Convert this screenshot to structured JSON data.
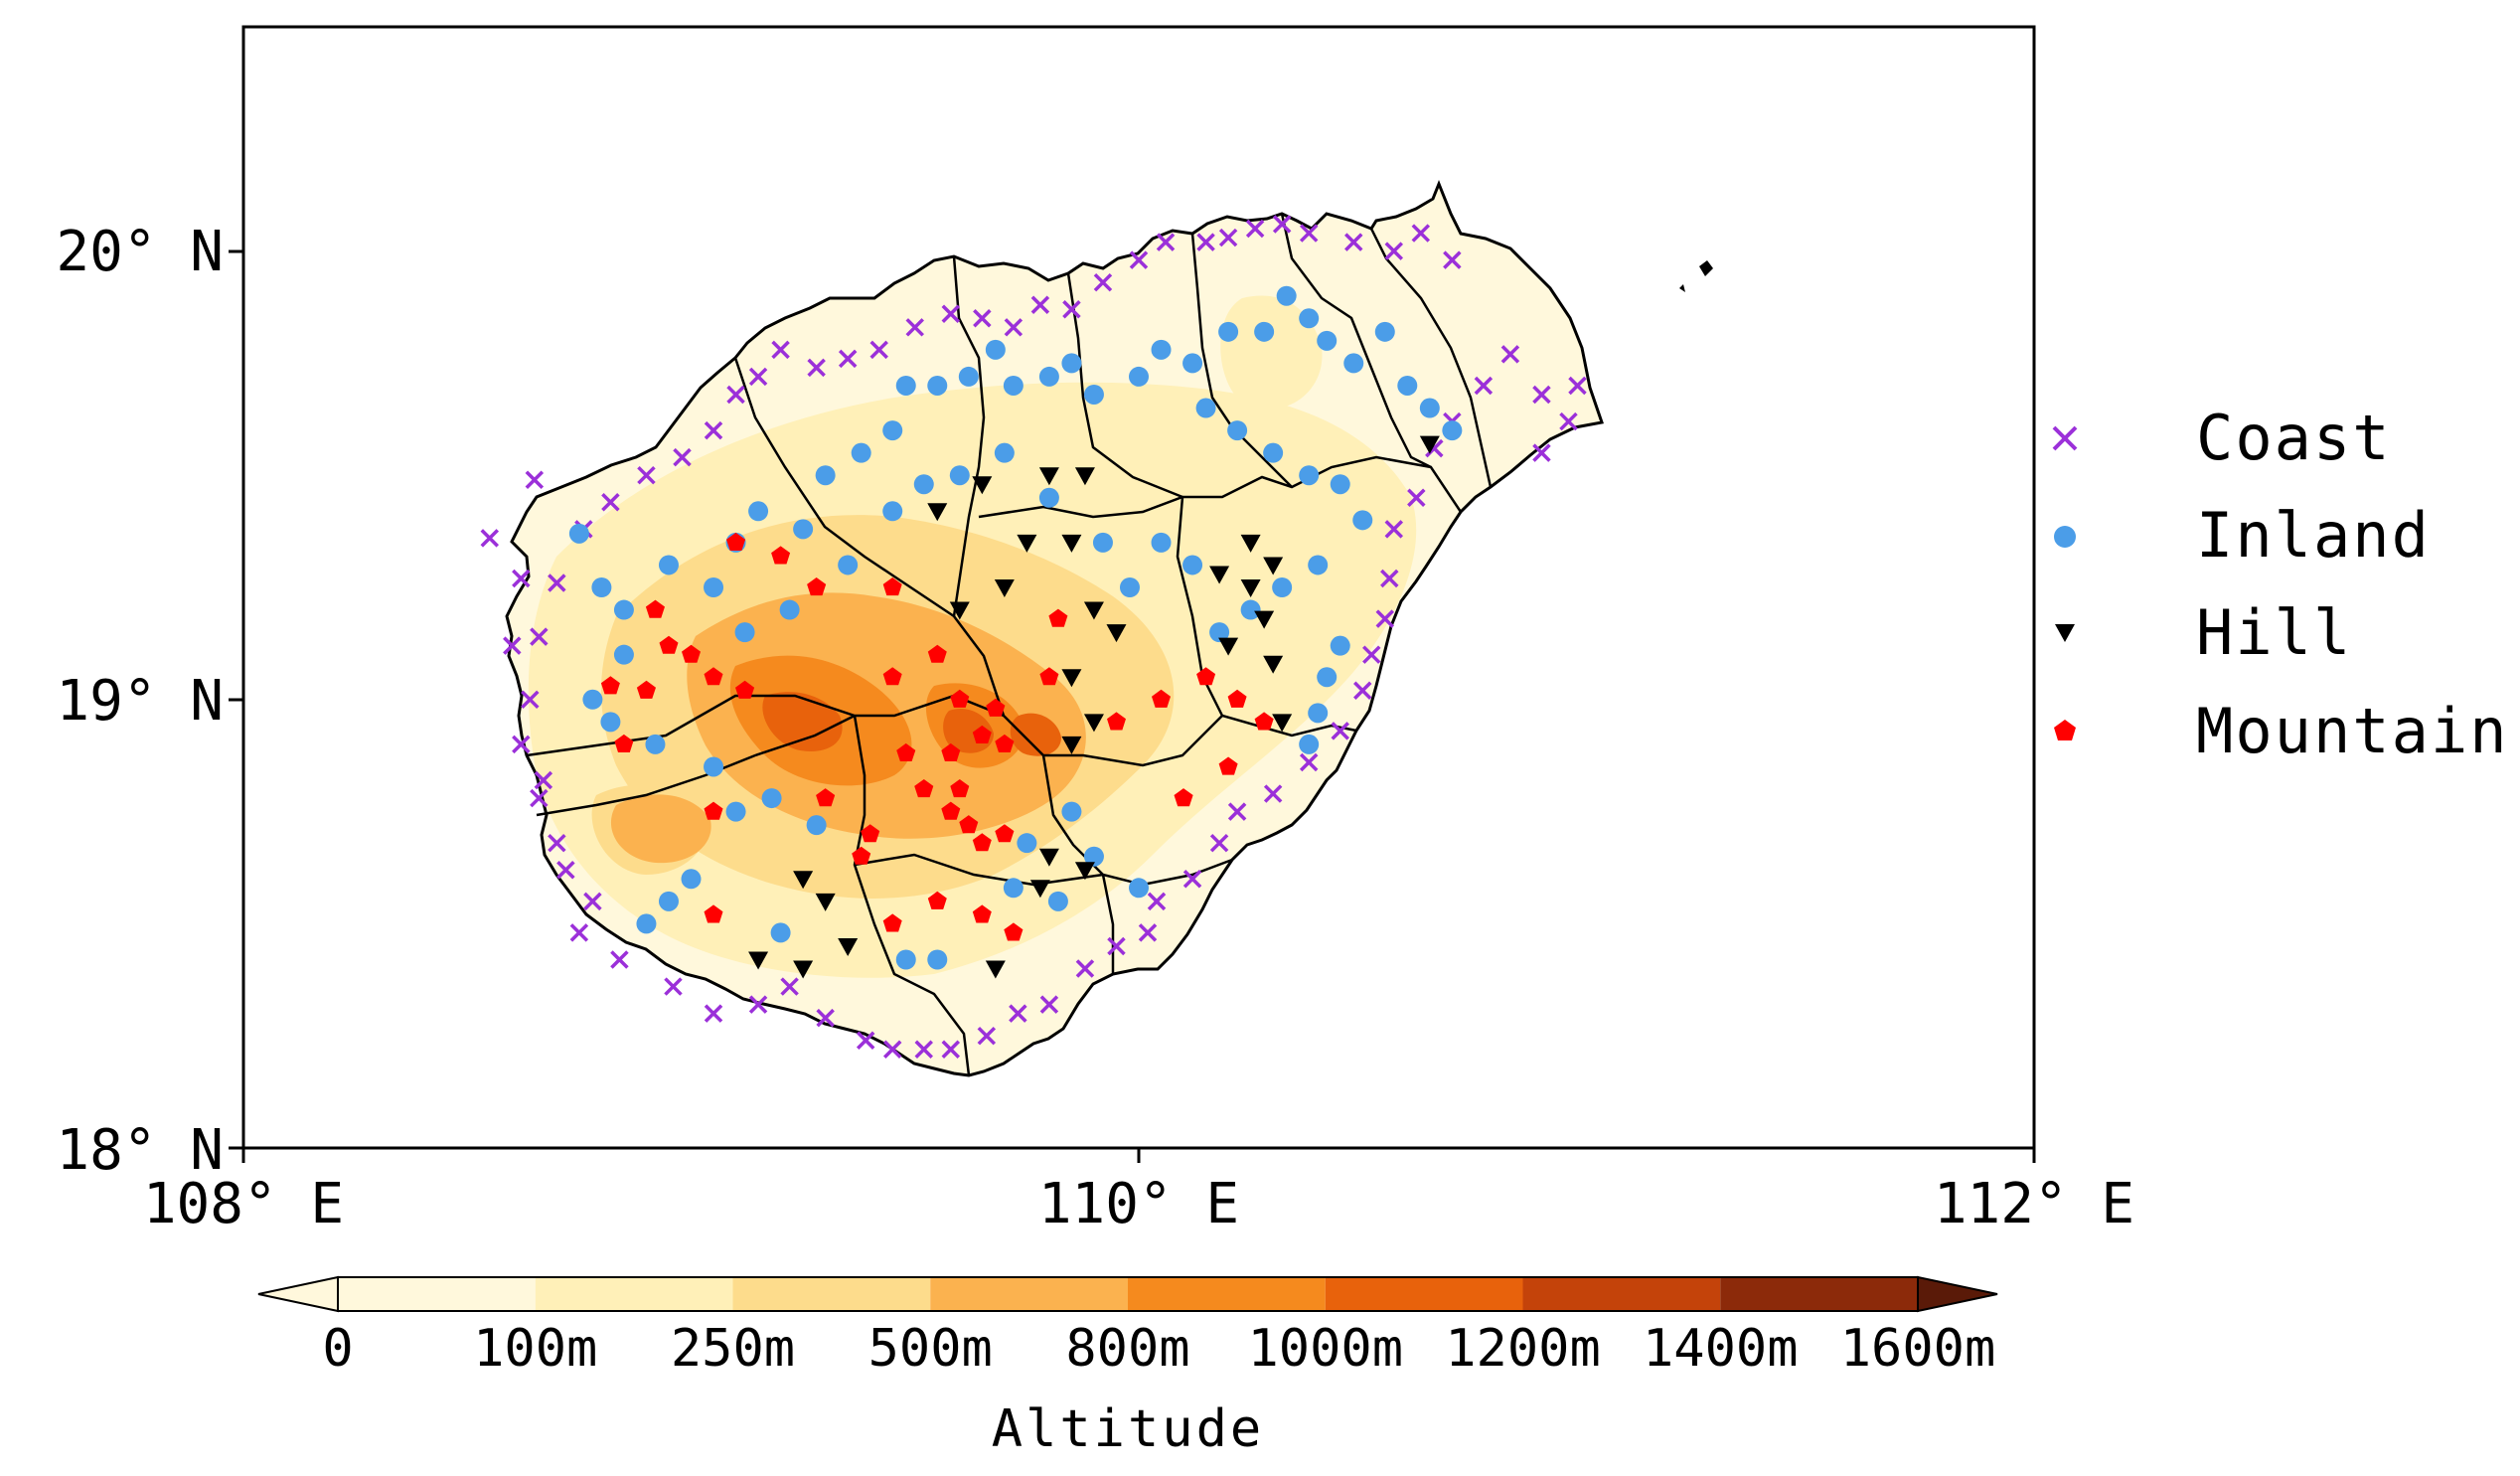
{
  "map": {
    "lat_ticks": [
      "20° N",
      "19° N",
      "18° N"
    ],
    "lon_ticks": [
      "108° E",
      "110° E",
      "112° E"
    ],
    "extent": {
      "lon": [
        108,
        112
      ],
      "lat": [
        18,
        20.5
      ]
    }
  },
  "legend": {
    "items": [
      {
        "label": "Coast",
        "marker": "x",
        "color": "#9b30d9"
      },
      {
        "label": "Inland",
        "marker": "circle",
        "color": "#4b9de8"
      },
      {
        "label": "Hill",
        "marker": "triangle-down",
        "color": "#000000"
      },
      {
        "label": "Mountain",
        "marker": "pentagon",
        "color": "#ff0000"
      }
    ]
  },
  "colorbar": {
    "title": "Altitude",
    "labels": [
      "0",
      "100m",
      "250m",
      "500m",
      "800m",
      "1000m",
      "1200m",
      "1400m",
      "1600m"
    ],
    "colors": [
      "#fff8dc",
      "#fff0b8",
      "#fddc8c",
      "#fbb24f",
      "#f58a1e",
      "#e8620c",
      "#c4430a",
      "#8c2a0a",
      "#5a1a08"
    ]
  },
  "chart_data": {
    "type": "scatter",
    "xlabel": "",
    "ylabel": "",
    "xlim": [
      108,
      112
    ],
    "ylim": [
      18,
      20.5
    ],
    "series": [
      {
        "name": "Coast",
        "points": [
          [
            108.65,
            19.49
          ],
          [
            108.55,
            19.36
          ],
          [
            108.62,
            19.27
          ],
          [
            108.6,
            19.12
          ],
          [
            108.62,
            18.9
          ],
          [
            108.67,
            18.82
          ],
          [
            108.72,
            18.62
          ],
          [
            108.75,
            18.48
          ],
          [
            108.84,
            18.42
          ],
          [
            108.96,
            18.36
          ],
          [
            109.05,
            18.3
          ],
          [
            109.15,
            18.32
          ],
          [
            109.22,
            18.36
          ],
          [
            109.3,
            18.29
          ],
          [
            109.39,
            18.24
          ],
          [
            109.45,
            18.22
          ],
          [
            109.52,
            18.22
          ],
          [
            109.58,
            18.22
          ],
          [
            109.66,
            18.25
          ],
          [
            109.73,
            18.3
          ],
          [
            109.8,
            18.32
          ],
          [
            109.88,
            18.4
          ],
          [
            109.95,
            18.45
          ],
          [
            110.02,
            18.48
          ],
          [
            110.04,
            18.55
          ],
          [
            110.12,
            18.6
          ],
          [
            110.18,
            18.68
          ],
          [
            110.22,
            18.75
          ],
          [
            110.3,
            18.79
          ],
          [
            110.38,
            18.86
          ],
          [
            110.45,
            18.93
          ],
          [
            110.5,
            19.02
          ],
          [
            110.52,
            19.1
          ],
          [
            110.55,
            19.18
          ],
          [
            110.56,
            19.27
          ],
          [
            110.57,
            19.38
          ],
          [
            110.62,
            19.45
          ],
          [
            110.66,
            19.56
          ],
          [
            110.7,
            19.62
          ],
          [
            110.77,
            19.7
          ],
          [
            110.83,
            19.77
          ],
          [
            110.9,
            19.68
          ],
          [
            110.98,
            19.7
          ],
          [
            110.96,
            19.62
          ],
          [
            110.9,
            19.55
          ],
          [
            110.7,
            19.98
          ],
          [
            110.63,
            20.04
          ],
          [
            110.57,
            20.0
          ],
          [
            110.48,
            20.02
          ],
          [
            110.38,
            20.04
          ],
          [
            110.32,
            20.06
          ],
          [
            110.26,
            20.05
          ],
          [
            110.2,
            20.03
          ],
          [
            110.15,
            20.02
          ],
          [
            110.06,
            20.02
          ],
          [
            110.0,
            19.98
          ],
          [
            109.92,
            19.93
          ],
          [
            109.85,
            19.87
          ],
          [
            109.78,
            19.88
          ],
          [
            109.72,
            19.83
          ],
          [
            109.65,
            19.85
          ],
          [
            109.58,
            19.86
          ],
          [
            109.5,
            19.83
          ],
          [
            109.42,
            19.78
          ],
          [
            109.35,
            19.76
          ],
          [
            109.28,
            19.74
          ],
          [
            109.2,
            19.78
          ],
          [
            109.15,
            19.72
          ],
          [
            109.1,
            19.68
          ],
          [
            109.05,
            19.6
          ],
          [
            108.98,
            19.54
          ],
          [
            108.9,
            19.5
          ],
          [
            108.82,
            19.44
          ],
          [
            108.76,
            19.38
          ],
          [
            108.7,
            19.26
          ],
          [
            108.66,
            19.14
          ],
          [
            108.64,
            19.0
          ],
          [
            108.66,
            18.78
          ],
          [
            108.7,
            18.68
          ],
          [
            108.78,
            18.55
          ]
        ]
      },
      {
        "name": "Inland",
        "points": [
          [
            108.75,
            19.37
          ],
          [
            108.8,
            19.25
          ],
          [
            108.85,
            19.2
          ],
          [
            108.85,
            19.1
          ],
          [
            108.78,
            19.0
          ],
          [
            108.82,
            18.95
          ],
          [
            108.92,
            18.9
          ],
          [
            108.95,
            19.3
          ],
          [
            109.05,
            19.25
          ],
          [
            109.1,
            19.35
          ],
          [
            109.15,
            19.42
          ],
          [
            109.25,
            19.38
          ],
          [
            109.3,
            19.5
          ],
          [
            109.38,
            19.55
          ],
          [
            109.45,
            19.6
          ],
          [
            109.48,
            19.7
          ],
          [
            109.55,
            19.7
          ],
          [
            109.62,
            19.72
          ],
          [
            109.68,
            19.78
          ],
          [
            109.72,
            19.7
          ],
          [
            109.8,
            19.72
          ],
          [
            109.85,
            19.75
          ],
          [
            109.9,
            19.68
          ],
          [
            110.0,
            19.72
          ],
          [
            110.05,
            19.78
          ],
          [
            110.12,
            19.75
          ],
          [
            110.2,
            19.82
          ],
          [
            110.28,
            19.82
          ],
          [
            110.33,
            19.9
          ],
          [
            110.38,
            19.85
          ],
          [
            110.42,
            19.8
          ],
          [
            110.48,
            19.75
          ],
          [
            110.55,
            19.82
          ],
          [
            110.6,
            19.7
          ],
          [
            110.65,
            19.65
          ],
          [
            110.7,
            19.6
          ],
          [
            110.15,
            19.65
          ],
          [
            110.22,
            19.6
          ],
          [
            110.3,
            19.55
          ],
          [
            110.38,
            19.5
          ],
          [
            110.45,
            19.48
          ],
          [
            110.5,
            19.4
          ],
          [
            110.4,
            19.3
          ],
          [
            110.32,
            19.25
          ],
          [
            110.25,
            19.2
          ],
          [
            110.18,
            19.15
          ],
          [
            110.12,
            19.3
          ],
          [
            110.05,
            19.35
          ],
          [
            109.98,
            19.25
          ],
          [
            109.92,
            19.35
          ],
          [
            109.8,
            19.45
          ],
          [
            109.7,
            19.55
          ],
          [
            109.6,
            19.5
          ],
          [
            109.52,
            19.48
          ],
          [
            109.45,
            19.42
          ],
          [
            109.35,
            19.3
          ],
          [
            109.22,
            19.2
          ],
          [
            109.12,
            19.15
          ],
          [
            109.05,
            18.85
          ],
          [
            109.1,
            18.75
          ],
          [
            109.18,
            18.78
          ],
          [
            109.28,
            18.72
          ],
          [
            109.0,
            18.6
          ],
          [
            108.95,
            18.55
          ],
          [
            108.9,
            18.5
          ],
          [
            109.2,
            18.48
          ],
          [
            109.48,
            18.42
          ],
          [
            109.55,
            18.42
          ],
          [
            109.72,
            18.58
          ],
          [
            109.82,
            18.55
          ],
          [
            109.9,
            18.65
          ],
          [
            110.0,
            18.58
          ],
          [
            109.75,
            18.68
          ],
          [
            109.85,
            18.75
          ],
          [
            110.38,
            18.9
          ],
          [
            110.4,
            18.97
          ],
          [
            110.42,
            19.05
          ],
          [
            110.45,
            19.12
          ]
        ]
      },
      {
        "name": "Hill",
        "points": [
          [
            109.55,
            19.42
          ],
          [
            109.65,
            19.48
          ],
          [
            109.8,
            19.5
          ],
          [
            109.88,
            19.5
          ],
          [
            109.75,
            19.35
          ],
          [
            109.85,
            19.35
          ],
          [
            109.9,
            19.2
          ],
          [
            109.95,
            19.15
          ],
          [
            109.7,
            19.25
          ],
          [
            109.6,
            19.2
          ],
          [
            110.18,
            19.28
          ],
          [
            110.25,
            19.35
          ],
          [
            110.3,
            19.3
          ],
          [
            110.25,
            19.25
          ],
          [
            110.28,
            19.18
          ],
          [
            110.2,
            19.12
          ],
          [
            110.3,
            19.08
          ],
          [
            109.85,
            19.05
          ],
          [
            109.9,
            18.95
          ],
          [
            109.85,
            18.9
          ],
          [
            110.32,
            18.95
          ],
          [
            109.8,
            18.65
          ],
          [
            109.88,
            18.62
          ],
          [
            109.78,
            18.58
          ],
          [
            109.25,
            18.6
          ],
          [
            109.3,
            18.55
          ],
          [
            109.35,
            18.45
          ],
          [
            109.25,
            18.4
          ],
          [
            109.15,
            18.42
          ],
          [
            109.68,
            18.4
          ],
          [
            110.65,
            19.57
          ]
        ]
      },
      {
        "name": "Mountain",
        "points": [
          [
            109.1,
            19.35
          ],
          [
            109.2,
            19.32
          ],
          [
            109.28,
            19.25
          ],
          [
            108.92,
            19.2
          ],
          [
            108.95,
            19.12
          ],
          [
            109.0,
            19.1
          ],
          [
            109.05,
            19.05
          ],
          [
            109.12,
            19.02
          ],
          [
            108.9,
            19.02
          ],
          [
            108.82,
            19.03
          ],
          [
            108.85,
            18.9
          ],
          [
            109.45,
            19.25
          ],
          [
            109.55,
            19.1
          ],
          [
            109.45,
            19.05
          ],
          [
            109.6,
            19.0
          ],
          [
            109.68,
            18.98
          ],
          [
            109.65,
            18.92
          ],
          [
            109.7,
            18.9
          ],
          [
            109.58,
            18.88
          ],
          [
            109.48,
            18.88
          ],
          [
            109.52,
            18.8
          ],
          [
            109.6,
            18.8
          ],
          [
            109.58,
            18.75
          ],
          [
            109.62,
            18.72
          ],
          [
            109.7,
            18.7
          ],
          [
            109.65,
            18.68
          ],
          [
            109.4,
            18.7
          ],
          [
            109.38,
            18.65
          ],
          [
            109.3,
            18.78
          ],
          [
            109.05,
            18.75
          ],
          [
            109.05,
            18.52
          ],
          [
            109.55,
            18.55
          ],
          [
            109.65,
            18.52
          ],
          [
            109.72,
            18.48
          ],
          [
            109.45,
            18.5
          ],
          [
            109.8,
            19.05
          ],
          [
            109.95,
            18.95
          ],
          [
            110.05,
            19.0
          ],
          [
            109.82,
            19.18
          ],
          [
            110.1,
            18.78
          ],
          [
            110.2,
            18.85
          ],
          [
            110.28,
            18.95
          ],
          [
            110.22,
            19.0
          ],
          [
            110.15,
            19.05
          ]
        ]
      }
    ]
  }
}
